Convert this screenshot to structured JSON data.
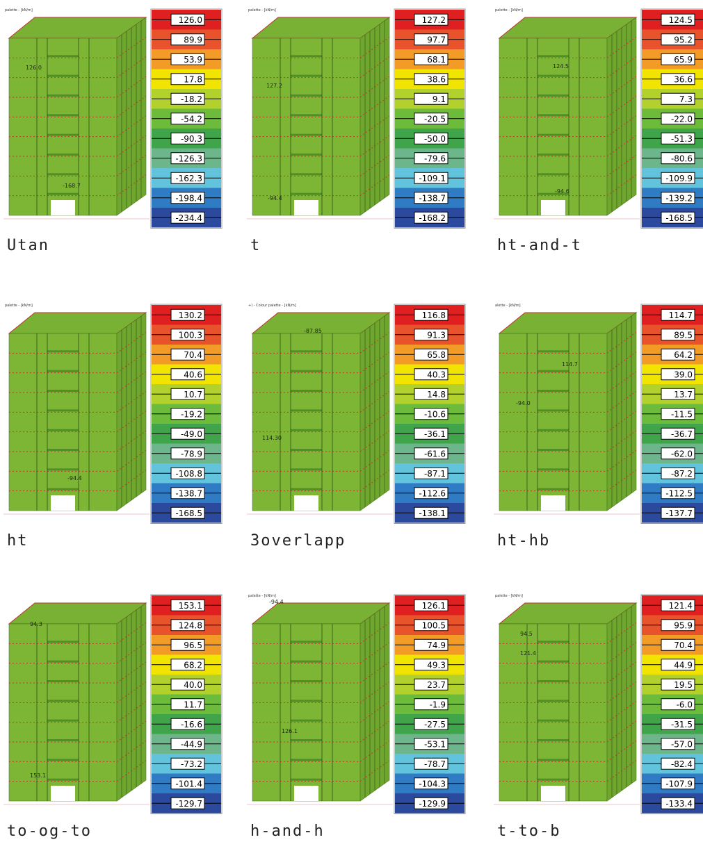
{
  "legend_colors": [
    "#e02020",
    "#e8532b",
    "#f29b27",
    "#f1e400",
    "#b3d12c",
    "#6cbb3a",
    "#3fa44a",
    "#6db68b",
    "#62c3dc",
    "#2f7cc5",
    "#2c4a9d"
  ],
  "panels": [
    {
      "header": "palette - [kN/m]",
      "caption": "Utan",
      "legend": [
        "126.0",
        "89.9",
        "53.9",
        "17.8",
        "-18.2",
        "-54.2",
        "-90.3",
        "-126.3",
        "-162.3",
        "-198.4",
        "-234.4"
      ],
      "annotations": [
        "126.0",
        "-168.7"
      ]
    },
    {
      "header": "palette - [kN/m]",
      "caption": "t",
      "legend": [
        "127.2",
        "97.7",
        "68.1",
        "38.6",
        "9.1",
        "-20.5",
        "-50.0",
        "-79.6",
        "-109.1",
        "-138.7",
        "-168.2"
      ],
      "annotations": [
        "127.2",
        "-94.4"
      ]
    },
    {
      "header": "palette - [kN/m]",
      "caption": "ht-and-t",
      "legend": [
        "124.5",
        "95.2",
        "65.9",
        "36.6",
        "7.3",
        "-22.0",
        "-51.3",
        "-80.6",
        "-109.9",
        "-139.2",
        "-168.5"
      ],
      "annotations": [
        "124.5",
        "-94.6"
      ]
    },
    {
      "header": "palette - [kN/m]",
      "caption": "ht",
      "legend": [
        "130.2",
        "100.3",
        "70.4",
        "40.6",
        "10.7",
        "-19.2",
        "-49.0",
        "-78.9",
        "-108.8",
        "-138.7",
        "-168.5"
      ],
      "annotations": [
        "-94.4"
      ]
    },
    {
      "header": "+) - Colour palette - [kN/m]",
      "caption": "3overlapp",
      "legend": [
        "116.8",
        "91.3",
        "65.8",
        "40.3",
        "14.8",
        "-10.6",
        "-36.1",
        "-61.6",
        "-87.1",
        "-112.6",
        "-138.1"
      ],
      "annotations": [
        "-87.85",
        "114.30"
      ]
    },
    {
      "header": "alette - [kN/m]",
      "caption": "ht-hb",
      "legend": [
        "114.7",
        "89.5",
        "64.2",
        "39.0",
        "13.7",
        "-11.5",
        "-36.7",
        "-62.0",
        "-87.2",
        "-112.5",
        "-137.7"
      ],
      "annotations": [
        "114.7",
        "-94.0"
      ]
    },
    {
      "header": "",
      "caption": "to-og-to",
      "legend": [
        "153.1",
        "124.8",
        "96.5",
        "68.2",
        "40.0",
        "11.7",
        "-16.6",
        "-44.9",
        "-73.2",
        "-101.4",
        "-129.7"
      ],
      "annotations": [
        "94.3",
        "153.1"
      ]
    },
    {
      "header": "palette - [kN/m]",
      "caption": "h-and-h",
      "legend": [
        "126.1",
        "100.5",
        "74.9",
        "49.3",
        "23.7",
        "-1.9",
        "-27.5",
        "-53.1",
        "-78.7",
        "-104.3",
        "-129.9"
      ],
      "annotations": [
        "-94.4",
        "126.1"
      ]
    },
    {
      "header": "palette - [kN/m]",
      "caption": "t-to-b",
      "legend": [
        "121.4",
        "95.9",
        "70.4",
        "44.9",
        "19.5",
        "-6.0",
        "-31.5",
        "-57.0",
        "-82.4",
        "-107.9",
        "-133.4"
      ],
      "annotations": [
        "94.5",
        "121.4"
      ]
    }
  ]
}
